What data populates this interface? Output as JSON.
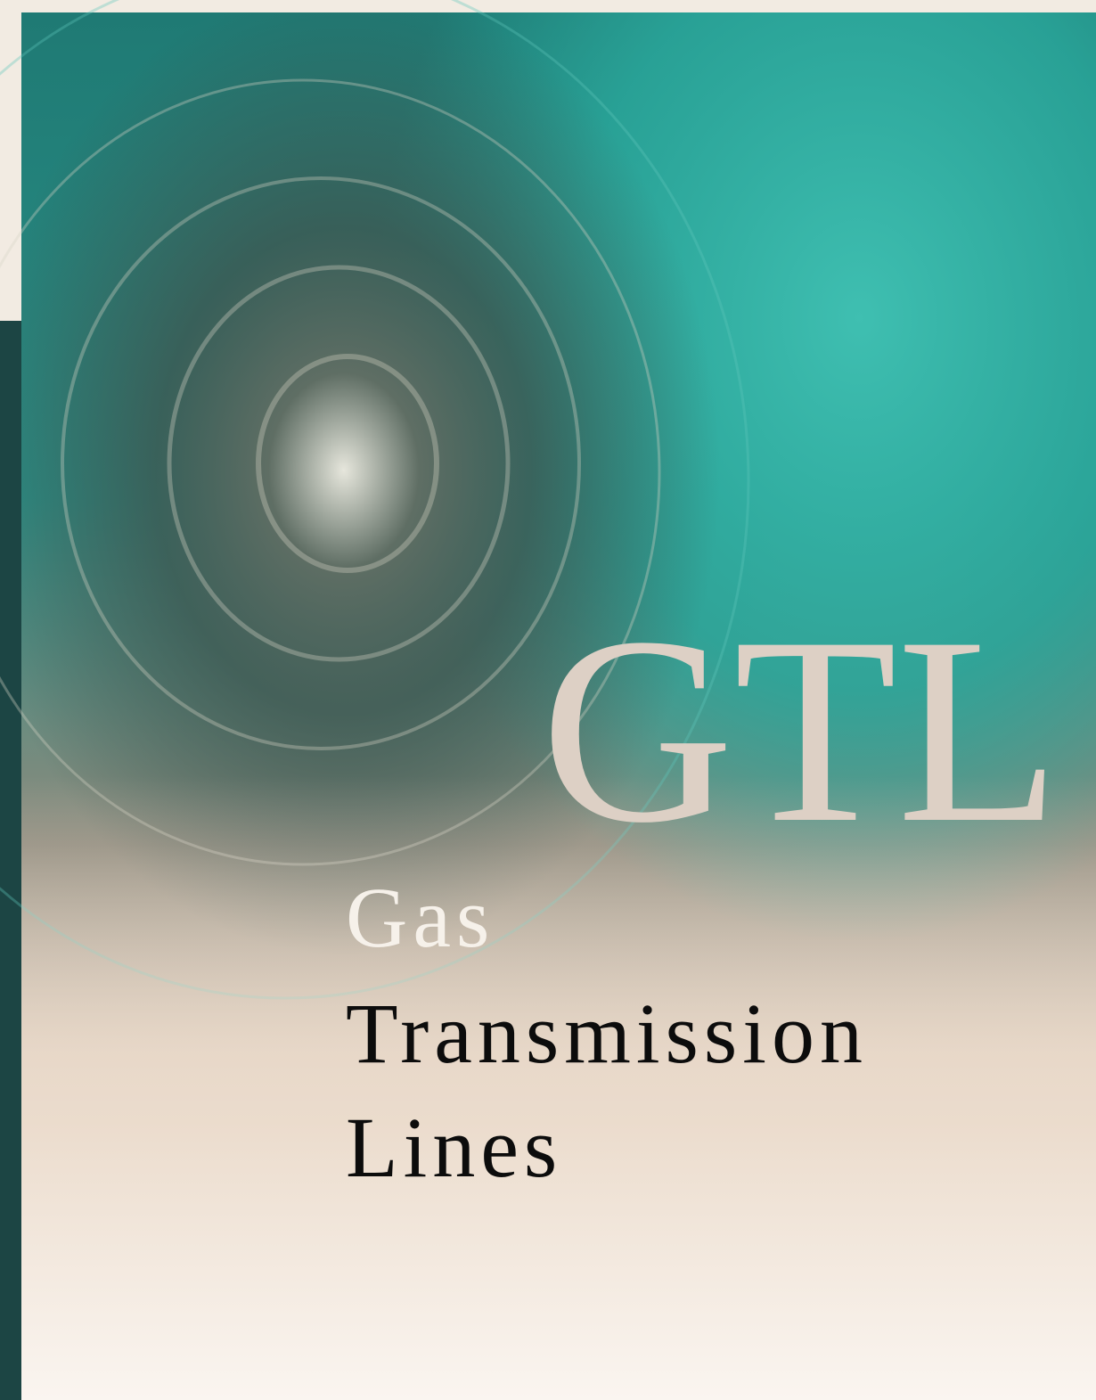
{
  "cover": {
    "acronym": "GTL",
    "title_lines": [
      "Gas",
      "Transmission",
      "Lines"
    ]
  }
}
